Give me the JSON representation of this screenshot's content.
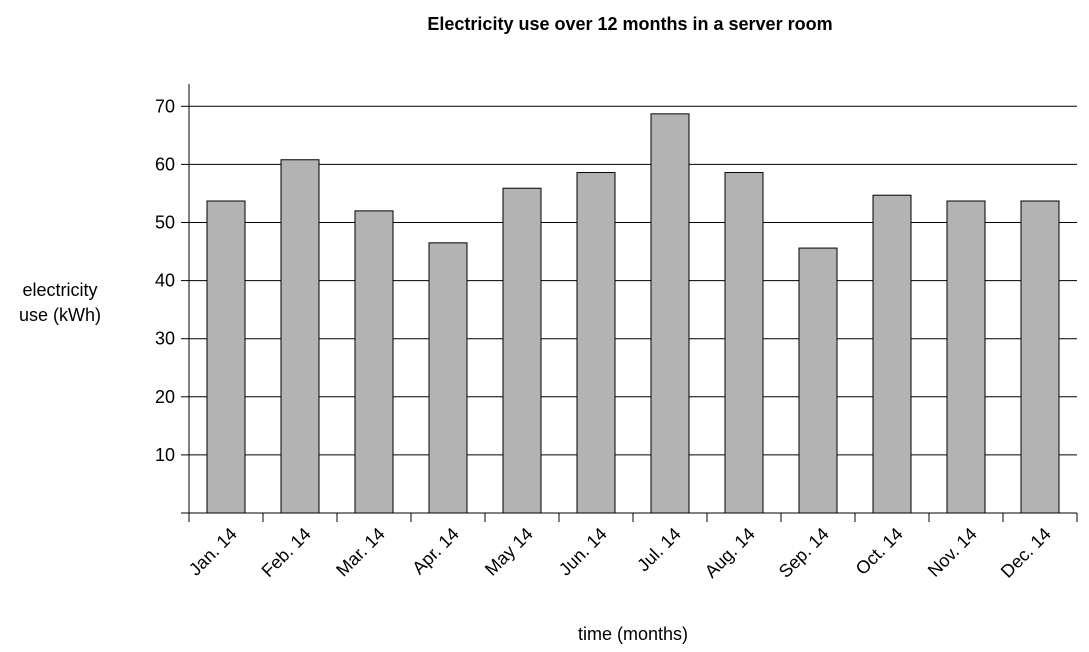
{
  "chart_data": {
    "type": "bar",
    "title": "Electricity use over 12 months in a server room",
    "xlabel": "time (months)",
    "ylabel_lines": [
      "electricity",
      "use (kWh)"
    ],
    "categories": [
      "Jan. 14",
      "Feb. 14",
      "Mar. 14",
      "Apr. 14",
      "May 14",
      "Jun. 14",
      "Jul. 14",
      "Aug. 14",
      "Sep. 14",
      "Oct. 14",
      "Nov. 14",
      "Dec. 14"
    ],
    "values": [
      53.7,
      60.8,
      52.0,
      46.5,
      55.9,
      58.6,
      68.7,
      58.6,
      45.6,
      54.7,
      53.7,
      53.7
    ],
    "yticks": [
      10,
      20,
      30,
      40,
      50,
      60,
      70
    ],
    "ylim": [
      0,
      70
    ],
    "grid": true,
    "bar_color": "#b3b3b3",
    "axis_color": "#000000"
  }
}
